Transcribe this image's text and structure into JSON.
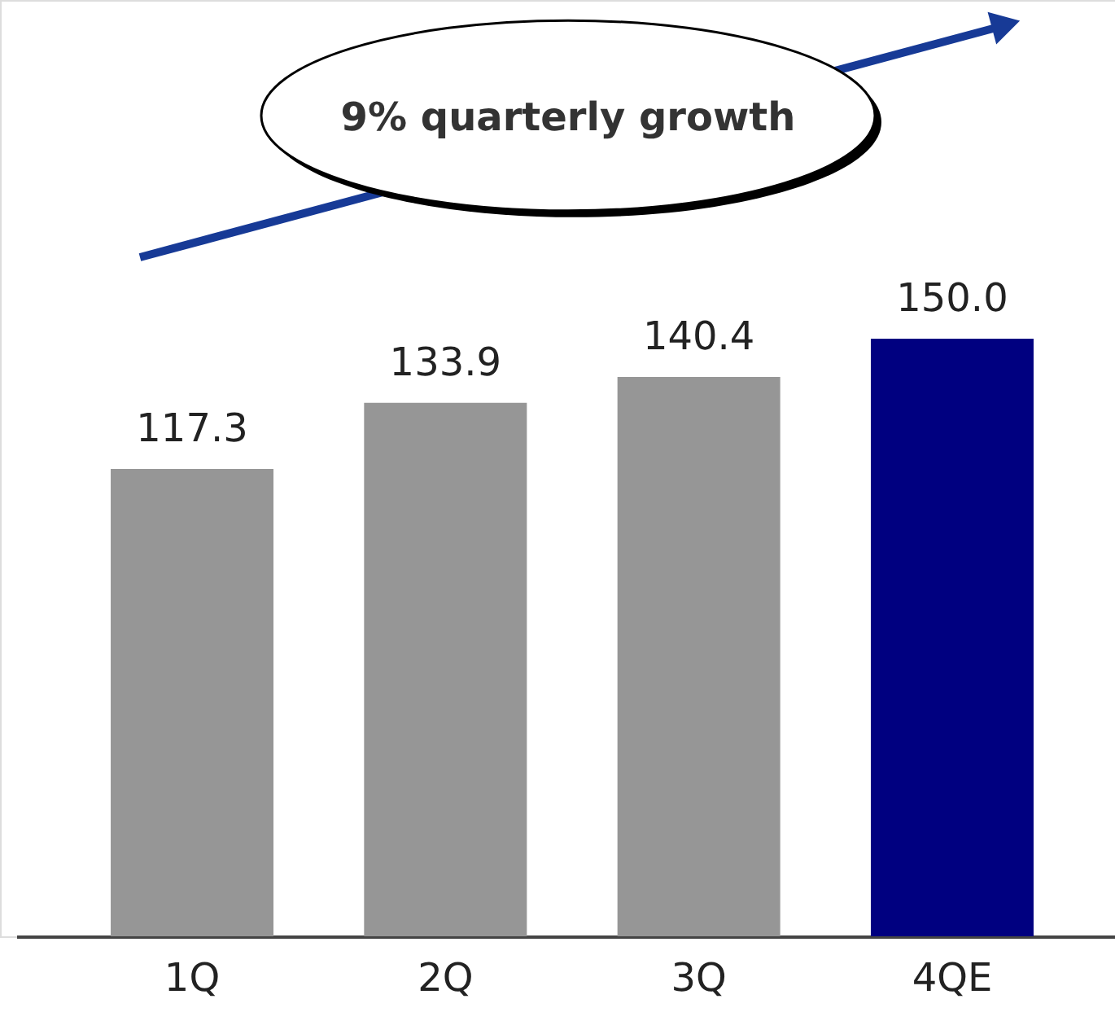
{
  "chart_data": {
    "type": "bar",
    "categories": [
      "1Q",
      "2Q",
      "3Q",
      "4QE"
    ],
    "values": [
      117.3,
      133.9,
      140.4,
      150.0
    ],
    "colors": [
      "#969696",
      "#969696",
      "#969696",
      "#000080"
    ],
    "value_labels": [
      "117.3",
      "133.9",
      "140.4",
      "150.0"
    ],
    "annotations": [
      "9% quarterly growth"
    ]
  }
}
